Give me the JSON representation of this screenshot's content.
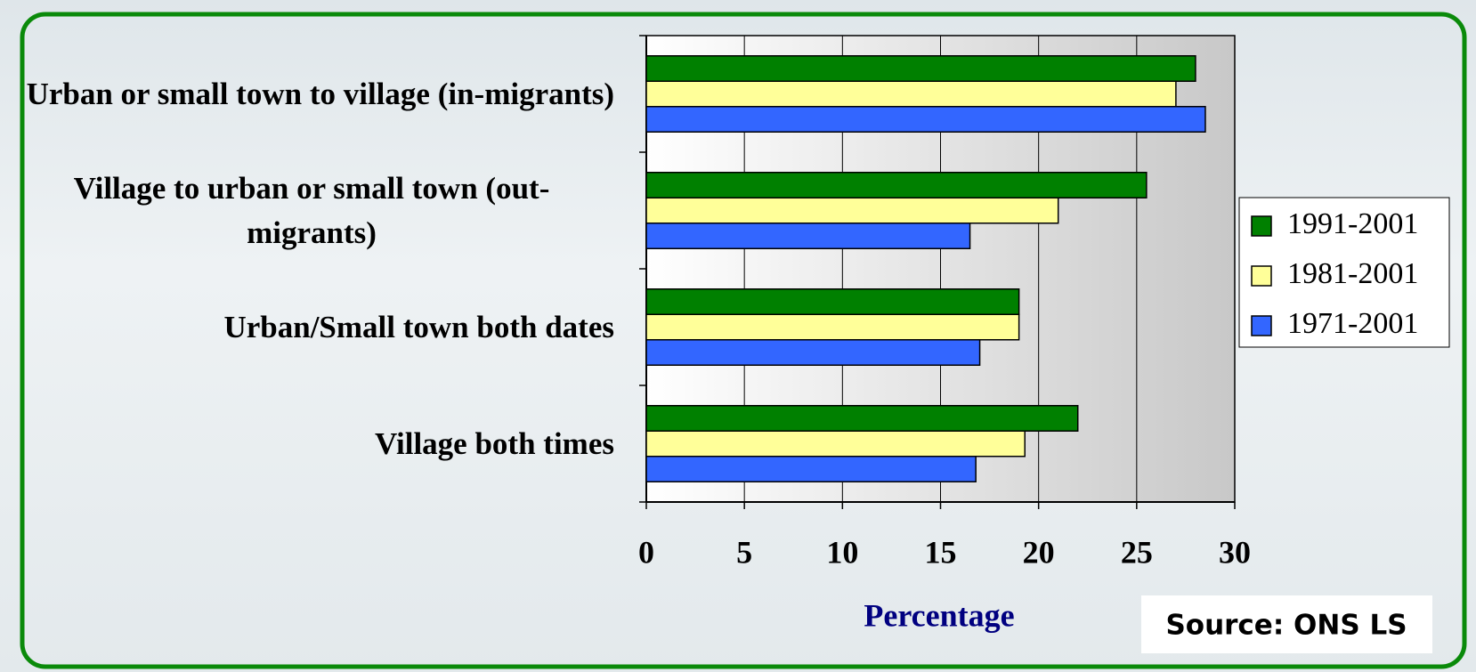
{
  "chart_data": {
    "type": "bar",
    "orientation": "horizontal",
    "categories": [
      "Urban or small town to village (in-migrants)",
      "Village to urban or small town (out-migrants)",
      "Urban/Small town both dates",
      "Village both times"
    ],
    "series": [
      {
        "name": "1991-2001",
        "color": "#008000",
        "values": [
          28,
          25.5,
          19,
          22
        ]
      },
      {
        "name": "1981-2001",
        "color": "#ffff99",
        "values": [
          27,
          21,
          19,
          19.3
        ]
      },
      {
        "name": "1971-2001",
        "color": "#3366ff",
        "values": [
          28.5,
          16.5,
          17,
          16.8
        ]
      }
    ],
    "xlabel": "Percentage",
    "xlim": [
      0,
      30
    ],
    "xticks": [
      0,
      5,
      10,
      15,
      20,
      25,
      30
    ],
    "grid": true,
    "legend": "right",
    "source": "Source: ONS LS"
  }
}
